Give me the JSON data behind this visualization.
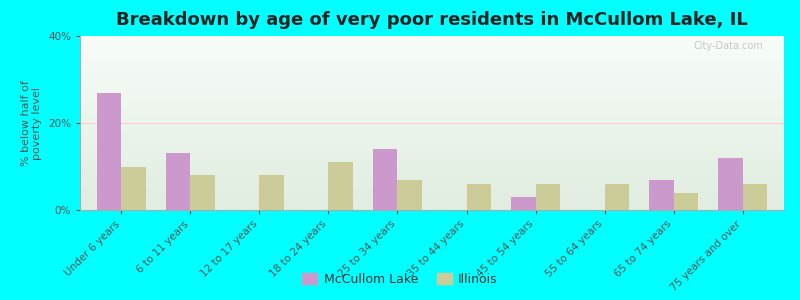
{
  "title": "Breakdown by age of very poor residents in McCullom Lake, IL",
  "ylabel": "% below half of\npoverty level",
  "categories": [
    "Under 6 years",
    "6 to 11 years",
    "12 to 17 years",
    "18 to 24 years",
    "25 to 34 years",
    "35 to 44 years",
    "45 to 54 years",
    "55 to 64 years",
    "65 to 74 years",
    "75 years and over"
  ],
  "mccullom_values": [
    27,
    13,
    0,
    0,
    14,
    0,
    3,
    0,
    7,
    12
  ],
  "illinois_values": [
    10,
    8,
    8,
    11,
    7,
    6,
    6,
    6,
    4,
    6
  ],
  "mccullom_color": "#cc99cc",
  "illinois_color": "#cccc99",
  "background_color": "#00ffff",
  "ylim": [
    0,
    40
  ],
  "yticks": [
    0,
    20,
    40
  ],
  "ytick_labels": [
    "0%",
    "20%",
    "40%"
  ],
  "bar_width": 0.35,
  "legend_labels": [
    "McCullom Lake",
    "Illinois"
  ],
  "title_fontsize": 13,
  "label_fontsize": 8,
  "tick_fontsize": 7.5,
  "watermark": "City-Data.com",
  "grid_color": "#ddddbb",
  "spine_color": "#aaaaaa"
}
